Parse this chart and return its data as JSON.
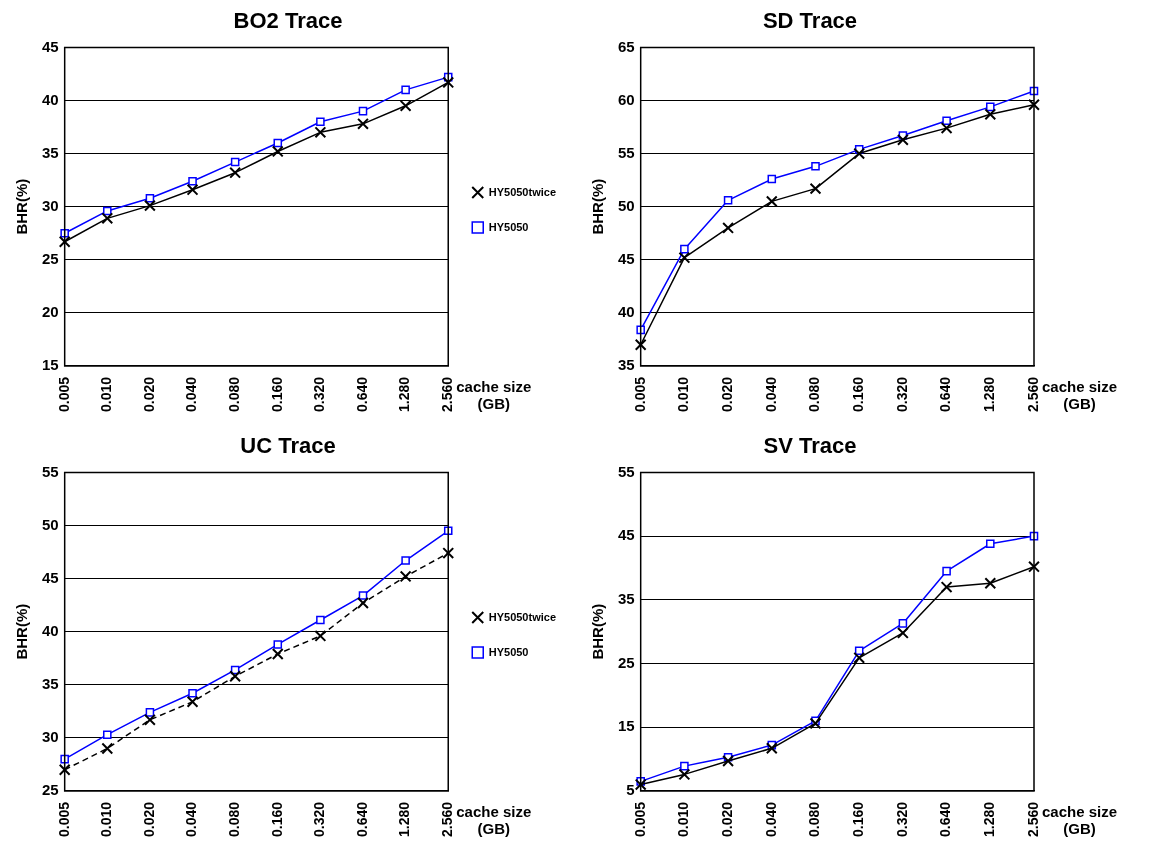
{
  "chart_data": [
    {
      "type": "line",
      "title": "BO2 Trace",
      "xlabel": "cache size\n(GB)",
      "ylabel": "BHR(%)",
      "categories": [
        "0.005",
        "0.010",
        "0.020",
        "0.040",
        "0.080",
        "0.160",
        "0.320",
        "0.640",
        "1.280",
        "2.560"
      ],
      "ylim": [
        15,
        45
      ],
      "yticks": [
        15,
        20,
        25,
        30,
        35,
        40,
        45
      ],
      "grid": "y",
      "legend": "right",
      "series": [
        {
          "name": "HY5050twice",
          "color": "#000000",
          "marker": "cross",
          "values": [
            26.7,
            28.9,
            30.1,
            31.6,
            33.2,
            35.2,
            37.0,
            37.8,
            39.5,
            41.7
          ]
        },
        {
          "name": "HY5050",
          "color": "#0000ff",
          "marker": "square",
          "values": [
            27.5,
            29.6,
            30.8,
            32.4,
            34.2,
            36.0,
            38.0,
            39.0,
            41.0,
            42.2
          ]
        }
      ]
    },
    {
      "type": "line",
      "title": "SD Trace",
      "xlabel": "cache size\n(GB)",
      "ylabel": "BHR(%)",
      "categories": [
        "0.005",
        "0.010",
        "0.020",
        "0.040",
        "0.080",
        "0.160",
        "0.320",
        "0.640",
        "1.280",
        "2.560"
      ],
      "ylim": [
        35,
        65
      ],
      "yticks": [
        35,
        40,
        45,
        50,
        55,
        60,
        65
      ],
      "grid": "y",
      "series": [
        {
          "color": "#000000",
          "marker": "cross",
          "values": [
            37.0,
            45.2,
            48.0,
            50.5,
            51.7,
            55.0,
            56.3,
            57.4,
            58.7,
            59.6
          ]
        },
        {
          "color": "#0000ff",
          "marker": "square",
          "values": [
            38.4,
            46.0,
            50.6,
            52.6,
            53.8,
            55.4,
            56.7,
            58.1,
            59.4,
            60.9
          ]
        }
      ]
    },
    {
      "type": "line",
      "title": "UC Trace",
      "xlabel": "cache size\n(GB)",
      "ylabel": "BHR(%)",
      "categories": [
        "0.005",
        "0.010",
        "0.020",
        "0.040",
        "0.080",
        "0.160",
        "0.320",
        "0.640",
        "1.280",
        "2.560"
      ],
      "ylim": [
        25,
        55
      ],
      "yticks": [
        25,
        30,
        35,
        40,
        45,
        50,
        55
      ],
      "grid": "y",
      "legend": "right",
      "series": [
        {
          "name": "HY5050twice",
          "color": "#000000",
          "marker": "cross",
          "line_style": "dashed",
          "values": [
            27.0,
            29.0,
            31.7,
            33.4,
            35.8,
            37.9,
            39.6,
            42.7,
            45.2,
            47.4
          ]
        },
        {
          "name": "HY5050",
          "color": "#0000ff",
          "marker": "square",
          "values": [
            28.0,
            30.3,
            32.4,
            34.2,
            36.4,
            38.8,
            41.1,
            43.4,
            46.7,
            49.5
          ]
        }
      ]
    },
    {
      "type": "line",
      "title": "SV Trace",
      "xlabel": "cache size\n(GB)",
      "ylabel": "BHR(%)",
      "categories": [
        "0.005",
        "0.010",
        "0.020",
        "0.040",
        "0.080",
        "0.160",
        "0.320",
        "0.640",
        "1.280",
        "2.560"
      ],
      "ylim": [
        5,
        55
      ],
      "yticks": [
        5,
        15,
        25,
        35,
        45,
        55
      ],
      "grid": "y",
      "series": [
        {
          "color": "#000000",
          "marker": "cross",
          "values": [
            6.0,
            7.6,
            9.7,
            11.7,
            15.6,
            25.9,
            29.8,
            37.0,
            37.6,
            40.2
          ]
        },
        {
          "color": "#0000ff",
          "marker": "square",
          "values": [
            6.5,
            8.9,
            10.3,
            12.2,
            16.0,
            27.0,
            31.3,
            39.5,
            43.8,
            45.0
          ]
        }
      ]
    }
  ]
}
